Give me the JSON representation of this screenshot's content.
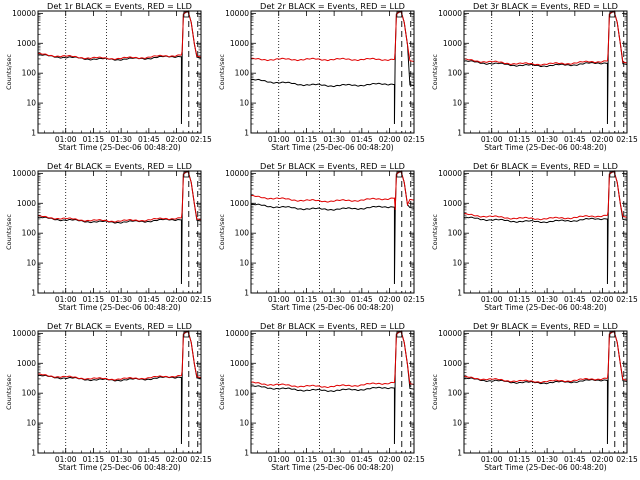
{
  "chart_data": [
    {
      "type": "line",
      "title": "Det 1r BLACK = Events, RED = LLD",
      "xlabel": "Start Time (25-Dec-06 00:48:20)",
      "ylabel": "Counts/sec",
      "x_tick_labels": [
        "01:00",
        "01:15",
        "01:30",
        "01:45",
        "02:00",
        "02:15"
      ],
      "y_tick_labels": [
        "1",
        "10",
        "100",
        "1000",
        "10000"
      ],
      "ylim": [
        1,
        12000
      ],
      "yscale": "log",
      "series": [
        {
          "name": "Events",
          "color": "#000000",
          "level": "low",
          "start": 400,
          "mid": 310,
          "end": 380
        },
        {
          "name": "LLD",
          "color": "#e00000",
          "level": "low",
          "start": 430,
          "mid": 330,
          "end": 410
        }
      ]
    },
    {
      "type": "line",
      "title": "Det 2r BLACK = Events, RED = LLD",
      "xlabel": "Start Time (25-Dec-06 00:48:20)",
      "ylabel": "Counts/sec",
      "x_tick_labels": [
        "01:00",
        "01:15",
        "01:30",
        "01:45",
        "02:00",
        "02:15"
      ],
      "y_tick_labels": [
        "1",
        "10",
        "100",
        "1000",
        "10000"
      ],
      "ylim": [
        1,
        12000
      ],
      "yscale": "log",
      "series": [
        {
          "name": "Events",
          "color": "#000000",
          "start": 60,
          "mid": 42,
          "end": 45
        },
        {
          "name": "LLD",
          "color": "#e00000",
          "start": 290,
          "mid": 300,
          "end": 290
        }
      ]
    },
    {
      "type": "line",
      "title": "Det 3r BLACK = Events, RED = LLD",
      "xlabel": "Start Time (25-Dec-06 00:48:20)",
      "ylabel": "Counts/sec",
      "x_tick_labels": [
        "01:00",
        "01:15",
        "01:30",
        "01:45",
        "02:00",
        "02:15"
      ],
      "y_tick_labels": [
        "1",
        "10",
        "100",
        "1000",
        "10000"
      ],
      "ylim": [
        1,
        12000
      ],
      "yscale": "log",
      "series": [
        {
          "name": "Events",
          "color": "#000000",
          "start": 250,
          "mid": 190,
          "end": 230
        },
        {
          "name": "LLD",
          "color": "#e00000",
          "start": 280,
          "mid": 210,
          "end": 260
        }
      ]
    },
    {
      "type": "line",
      "title": "Det 4r BLACK = Events, RED = LLD",
      "xlabel": "Start Time (25-Dec-06 00:48:20)",
      "ylabel": "Counts/sec",
      "x_tick_labels": [
        "01:00",
        "01:15",
        "01:30",
        "01:45",
        "02:00",
        "02:15"
      ],
      "y_tick_labels": [
        "1",
        "10",
        "100",
        "1000",
        "10000"
      ],
      "ylim": [
        1,
        12000
      ],
      "yscale": "log",
      "series": [
        {
          "name": "Events",
          "color": "#000000",
          "start": 330,
          "mid": 250,
          "end": 300
        },
        {
          "name": "LLD",
          "color": "#e00000",
          "start": 360,
          "mid": 270,
          "end": 330
        }
      ]
    },
    {
      "type": "line",
      "title": "Det 5r BLACK = Events, RED = LLD",
      "xlabel": "Start Time (25-Dec-06 00:48:20)",
      "ylabel": "Counts/sec",
      "x_tick_labels": [
        "01:00",
        "01:15",
        "01:30",
        "01:45",
        "02:00",
        "02:15"
      ],
      "y_tick_labels": [
        "1",
        "10",
        "100",
        "1000",
        "10000"
      ],
      "ylim": [
        1,
        12000
      ],
      "yscale": "log",
      "series": [
        {
          "name": "Events",
          "color": "#000000",
          "start": 900,
          "mid": 650,
          "end": 800
        },
        {
          "name": "LLD",
          "color": "#e00000",
          "start": 1700,
          "mid": 1100,
          "end": 1500
        }
      ]
    },
    {
      "type": "line",
      "title": "Det 6r BLACK = Events, RED = LLD",
      "xlabel": "Start Time (25-Dec-06 00:48:20)",
      "ylabel": "Counts/sec",
      "x_tick_labels": [
        "01:00",
        "01:15",
        "01:30",
        "01:45",
        "02:00",
        "02:15"
      ],
      "y_tick_labels": [
        "1",
        "10",
        "100",
        "1000",
        "10000"
      ],
      "ylim": [
        1,
        12000
      ],
      "yscale": "log",
      "series": [
        {
          "name": "Events",
          "color": "#000000",
          "start": 330,
          "mid": 260,
          "end": 320
        },
        {
          "name": "LLD",
          "color": "#e00000",
          "start": 420,
          "mid": 330,
          "end": 400
        }
      ]
    },
    {
      "type": "line",
      "title": "Det 7r BLACK = Events, RED = LLD",
      "xlabel": "Start Time (25-Dec-06 00:48:20)",
      "ylabel": "Counts/sec",
      "x_tick_labels": [
        "01:00",
        "01:15",
        "01:30",
        "01:45",
        "02:00",
        "02:15"
      ],
      "y_tick_labels": [
        "1",
        "10",
        "100",
        "1000",
        "10000"
      ],
      "ylim": [
        1,
        12000
      ],
      "yscale": "log",
      "series": [
        {
          "name": "Events",
          "color": "#000000",
          "start": 380,
          "mid": 290,
          "end": 360
        },
        {
          "name": "LLD",
          "color": "#e00000",
          "start": 410,
          "mid": 310,
          "end": 390
        }
      ]
    },
    {
      "type": "line",
      "title": "Det 8r BLACK = Events, RED = LLD",
      "xlabel": "Start Time (25-Dec-06 00:48:20)",
      "ylabel": "Counts/sec",
      "x_tick_labels": [
        "01:00",
        "01:15",
        "01:30",
        "01:45",
        "02:00",
        "02:15"
      ],
      "y_tick_labels": [
        "1",
        "10",
        "100",
        "1000",
        "10000"
      ],
      "ylim": [
        1,
        12000
      ],
      "yscale": "log",
      "series": [
        {
          "name": "Events",
          "color": "#000000",
          "start": 170,
          "mid": 150,
          "end": 160
        },
        {
          "name": "LLD",
          "color": "#e00000",
          "start": 220,
          "mid": 195,
          "end": 230
        }
      ]
    },
    {
      "type": "line",
      "title": "Det 9r BLACK = Events, RED = LLD",
      "xlabel": "Start Time (25-Dec-06 00:48:20)",
      "ylabel": "Counts/sec",
      "x_tick_labels": [
        "01:00",
        "01:15",
        "01:30",
        "01:45",
        "02:00",
        "02:15"
      ],
      "y_tick_labels": [
        "1",
        "10",
        "100",
        "1000",
        "10000"
      ],
      "ylim": [
        1,
        12000
      ],
      "yscale": "log",
      "series": [
        {
          "name": "Events",
          "color": "#000000",
          "start": 310,
          "mid": 240,
          "end": 290
        },
        {
          "name": "LLD",
          "color": "#e00000",
          "start": 340,
          "mid": 260,
          "end": 320
        }
      ]
    }
  ]
}
